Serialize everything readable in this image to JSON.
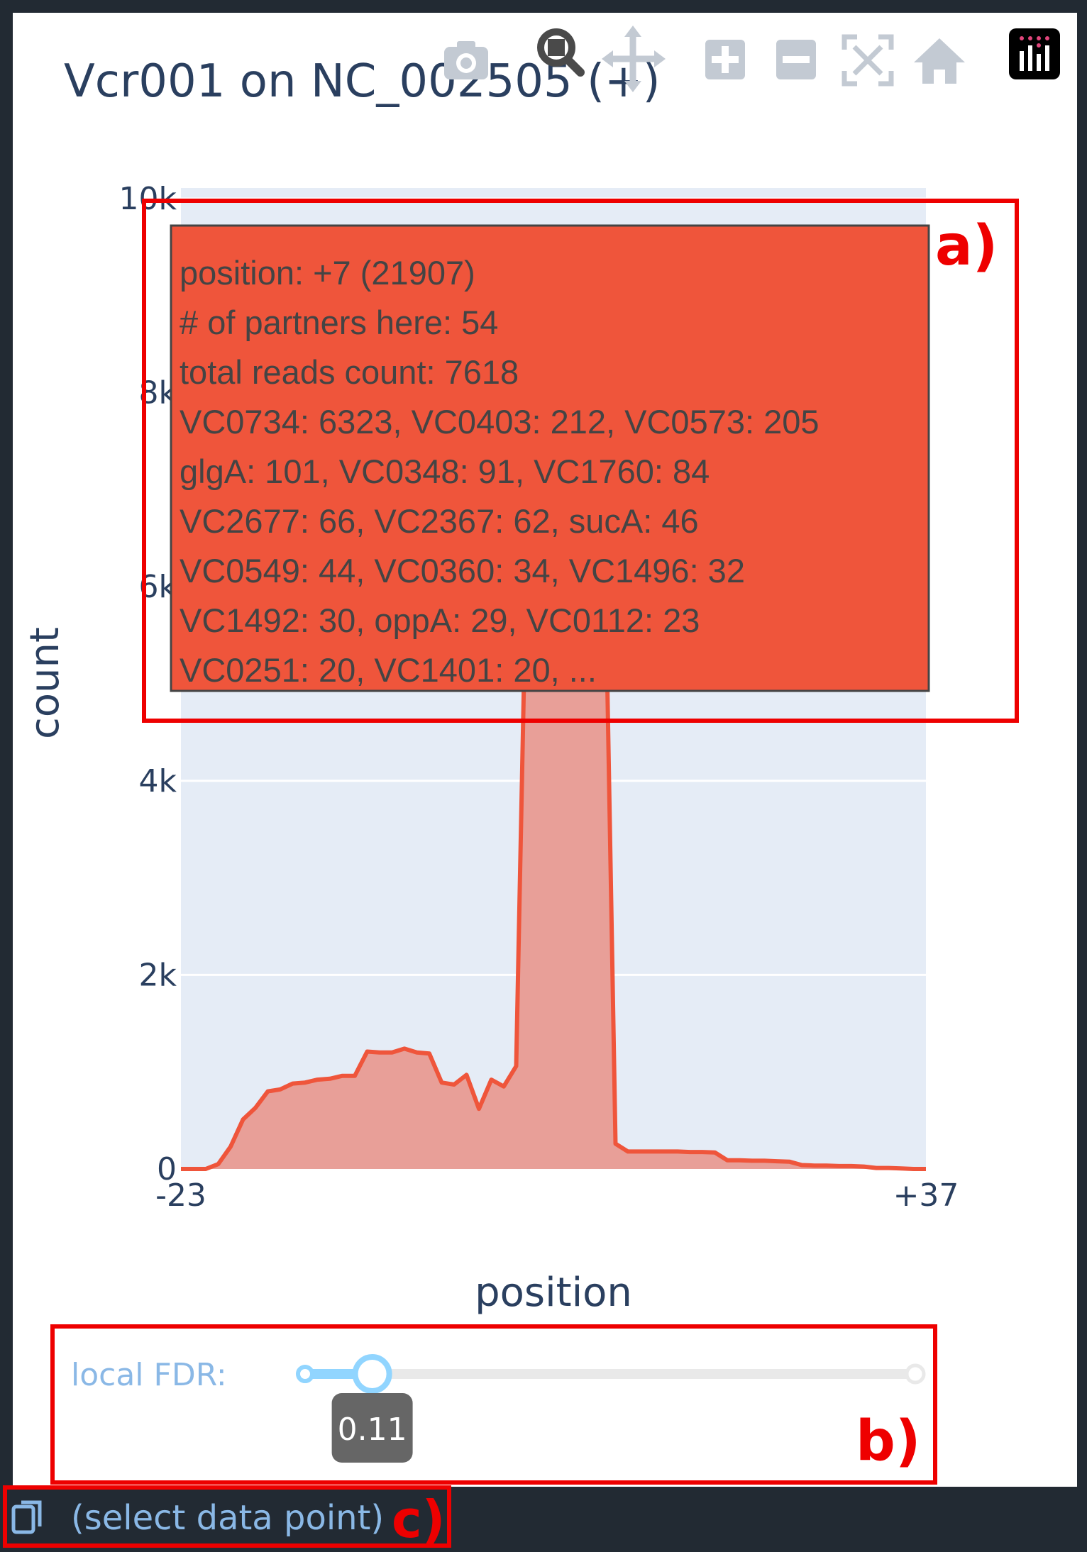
{
  "modebar": {
    "icons": [
      "camera-icon",
      "zoom-icon",
      "pan-icon",
      "zoom-in-icon",
      "zoom-out-icon",
      "autoscale-icon",
      "home-icon",
      "plotly-logo-icon"
    ]
  },
  "annotations": {
    "a": "a)",
    "b": "b)",
    "c": "c)"
  },
  "slider": {
    "label": "local FDR:",
    "value": "0.11",
    "fraction": 0.11
  },
  "status": {
    "text": "(select data point)"
  },
  "hover": {
    "lines": [
      "position: +7 (21907)",
      "# of partners here: 54",
      "total reads count: 7618",
      "VC0734: 6323, VC0403: 212, VC0573: 205",
      "glgA: 101, VC0348: 91, VC1760: 84",
      "VC2677: 66, VC2367: 62, sucA: 46",
      "VC0549: 44, VC0360: 34, VC1496: 32",
      "VC1492: 30, oppA: 29, VC0112: 23",
      "VC0251: 20, VC1401: 20, ..."
    ]
  },
  "colors": {
    "line": "#ef553b",
    "fill": "#e89f98",
    "plot_bg": "#e5ecf6",
    "text": "#2a3f5f",
    "annotation": "#ee0000",
    "slider": "#8ab8e6",
    "hover_bg": "#ef553b"
  },
  "chart_data": {
    "type": "area",
    "title": "Vcr001 on NC_002505 (+)",
    "xlabel": "position",
    "ylabel": "count",
    "xlim": [
      -23,
      37
    ],
    "ylim": [
      0,
      10000
    ],
    "x_tick_labels": [
      "-23",
      "+37"
    ],
    "y_tick_labels": [
      "0",
      "2k",
      "4k",
      "6k",
      "8k",
      "10k"
    ],
    "y_ticks": [
      0,
      2000,
      4000,
      6000,
      8000,
      10000
    ],
    "x": [
      -23,
      -22,
      -21,
      -20,
      -19,
      -18,
      -17,
      -16,
      -15,
      -14,
      -13,
      -12,
      -11,
      -10,
      -9,
      -8,
      -7,
      -6,
      -5,
      -4,
      -3,
      -2,
      -1,
      0,
      1,
      2,
      3,
      4,
      5,
      6,
      7,
      8,
      9,
      10,
      11,
      12,
      13,
      14,
      15,
      16,
      17,
      18,
      19,
      20,
      21,
      22,
      23,
      24,
      25,
      26,
      27,
      28,
      29,
      30,
      31,
      32,
      33,
      34,
      35,
      36,
      37
    ],
    "y": [
      0,
      0,
      0,
      50,
      230,
      510,
      630,
      800,
      820,
      880,
      890,
      920,
      930,
      960,
      960,
      1210,
      1200,
      1200,
      1240,
      1200,
      1190,
      890,
      870,
      970,
      620,
      920,
      850,
      1060,
      7400,
      7500,
      7618,
      7600,
      7550,
      7500,
      7450,
      260,
      180,
      180,
      180,
      180,
      180,
      175,
      175,
      170,
      90,
      90,
      85,
      85,
      80,
      75,
      40,
      35,
      35,
      30,
      30,
      25,
      10,
      10,
      5,
      0,
      0
    ]
  }
}
